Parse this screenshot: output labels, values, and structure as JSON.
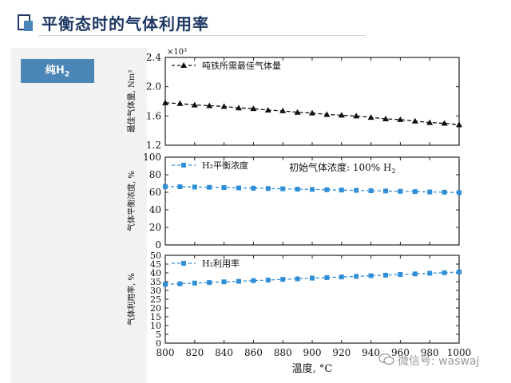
{
  "header": {
    "title": "平衡态时的气体利用率"
  },
  "sidebar": {
    "button_main": "纯H",
    "button_sub": "2"
  },
  "watermark": {
    "text": "微信号: waswaj"
  },
  "colors": {
    "accent": "#1f3864",
    "button": "#4a86b8",
    "series_blue": "#2f8fd6",
    "series_black": "#111111"
  },
  "chart_data": [
    {
      "type": "line",
      "ylabel": "最佳气体量, Nm³",
      "y_multiplier_label": "×10³",
      "ylim": [
        1.2,
        2.4
      ],
      "yticks": [
        "1.2",
        "1.6",
        "2.0",
        "2.4"
      ],
      "series": [
        {
          "name": "吨铁所需最佳气体量",
          "x": [
            800,
            810,
            820,
            830,
            840,
            850,
            860,
            870,
            880,
            890,
            900,
            910,
            920,
            930,
            940,
            950,
            960,
            970,
            980,
            990,
            1000
          ],
          "values": [
            1.78,
            1.77,
            1.75,
            1.74,
            1.73,
            1.71,
            1.7,
            1.68,
            1.67,
            1.65,
            1.64,
            1.62,
            1.61,
            1.6,
            1.58,
            1.56,
            1.55,
            1.53,
            1.51,
            1.5,
            1.48
          ]
        }
      ]
    },
    {
      "type": "line",
      "ylabel": "气体平衡浓度, %",
      "annotation": "初始气体浓度: 100% H",
      "annotation_sub": "2",
      "ylim": [
        0,
        100
      ],
      "yticks": [
        "0",
        "20",
        "40",
        "60",
        "80",
        "100"
      ],
      "series": [
        {
          "name": "H₂平衡浓度",
          "x": [
            800,
            810,
            820,
            830,
            840,
            850,
            860,
            870,
            880,
            890,
            900,
            910,
            920,
            930,
            940,
            950,
            960,
            970,
            980,
            990,
            1000
          ],
          "values": [
            66.5,
            66.3,
            66.0,
            65.7,
            65.4,
            65.0,
            64.7,
            64.3,
            64.0,
            63.6,
            63.3,
            62.9,
            62.6,
            62.2,
            61.8,
            61.5,
            61.1,
            60.8,
            60.4,
            60.1,
            59.7
          ]
        }
      ]
    },
    {
      "type": "line",
      "ylabel": "气体利用率, %",
      "xlabel": "温度, °C",
      "ylim": [
        0,
        50
      ],
      "yticks": [
        "0",
        "5",
        "10",
        "15",
        "20",
        "25",
        "30",
        "35",
        "40",
        "45",
        "50"
      ],
      "xticks": [
        "800",
        "820",
        "840",
        "860",
        "880",
        "900",
        "920",
        "940",
        "960",
        "980",
        "1000"
      ],
      "series": [
        {
          "name": "H₂利用率",
          "x": [
            800,
            810,
            820,
            830,
            840,
            850,
            860,
            870,
            880,
            890,
            900,
            910,
            920,
            930,
            940,
            950,
            960,
            970,
            980,
            990,
            1000
          ],
          "values": [
            33.5,
            33.8,
            34.2,
            34.5,
            34.9,
            35.2,
            35.6,
            35.9,
            36.3,
            36.6,
            37.0,
            37.3,
            37.7,
            38.0,
            38.4,
            38.7,
            39.1,
            39.4,
            39.8,
            40.1,
            40.5
          ]
        }
      ]
    }
  ]
}
